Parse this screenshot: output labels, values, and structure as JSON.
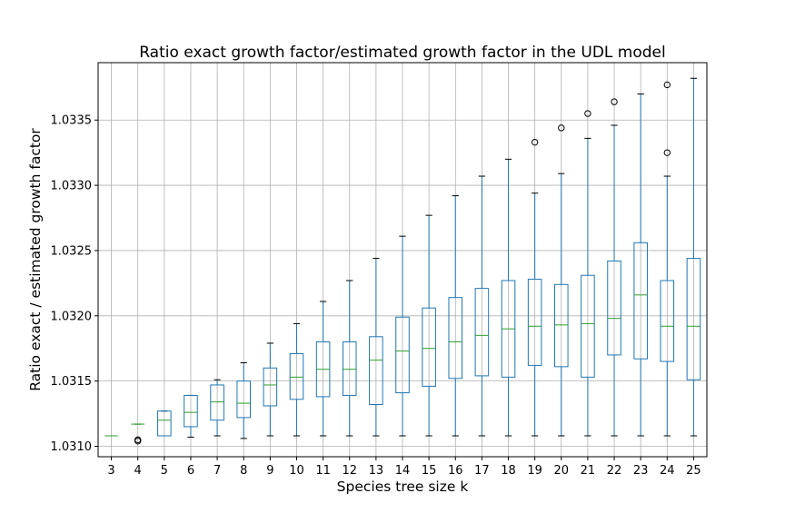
{
  "chart_data": {
    "type": "boxplot",
    "title": "Ratio exact growth factor/estimated growth factor  in the UDL model",
    "xlabel": "Species tree size k",
    "ylabel": "Ratio exact / estimated growth factor",
    "categories": [
      "3",
      "4",
      "5",
      "6",
      "7",
      "8",
      "9",
      "10",
      "11",
      "12",
      "13",
      "14",
      "15",
      "16",
      "17",
      "18",
      "19",
      "20",
      "21",
      "22",
      "23",
      "24",
      "25"
    ],
    "ylim": [
      1.03092,
      1.03394
    ],
    "yticks": [
      "1.0310",
      "1.0315",
      "1.0320",
      "1.0325",
      "1.0330",
      "1.0335"
    ],
    "ytick_values": [
      1.031,
      1.0315,
      1.032,
      1.0325,
      1.033,
      1.0335
    ],
    "grid": true,
    "boxes": [
      {
        "k": "3",
        "whislo": 1.03108,
        "q1": 1.03108,
        "med": 1.03108,
        "q3": 1.03108,
        "whishi": 1.03108,
        "fliers": []
      },
      {
        "k": "4",
        "whislo": 1.03117,
        "q1": 1.03117,
        "med": 1.03117,
        "q3": 1.03117,
        "whishi": 1.03117,
        "fliers": [
          1.03105,
          1.03104
        ]
      },
      {
        "k": "5",
        "whislo": 1.03108,
        "q1": 1.03108,
        "med": 1.0312,
        "q3": 1.03127,
        "whishi": 1.03127,
        "fliers": []
      },
      {
        "k": "6",
        "whislo": 1.03107,
        "q1": 1.03115,
        "med": 1.03126,
        "q3": 1.03139,
        "whishi": 1.03139,
        "fliers": []
      },
      {
        "k": "7",
        "whislo": 1.03108,
        "q1": 1.0312,
        "med": 1.03134,
        "q3": 1.03147,
        "whishi": 1.03151,
        "fliers": []
      },
      {
        "k": "8",
        "whislo": 1.03106,
        "q1": 1.03122,
        "med": 1.03133,
        "q3": 1.0315,
        "whishi": 1.03164,
        "fliers": []
      },
      {
        "k": "9",
        "whislo": 1.03108,
        "q1": 1.03131,
        "med": 1.03147,
        "q3": 1.0316,
        "whishi": 1.03179,
        "fliers": []
      },
      {
        "k": "10",
        "whislo": 1.03108,
        "q1": 1.03136,
        "med": 1.03153,
        "q3": 1.03171,
        "whishi": 1.03194,
        "fliers": []
      },
      {
        "k": "11",
        "whislo": 1.03108,
        "q1": 1.03138,
        "med": 1.03159,
        "q3": 1.0318,
        "whishi": 1.03211,
        "fliers": []
      },
      {
        "k": "12",
        "whislo": 1.03108,
        "q1": 1.03139,
        "med": 1.03159,
        "q3": 1.0318,
        "whishi": 1.03227,
        "fliers": []
      },
      {
        "k": "13",
        "whislo": 1.03108,
        "q1": 1.03132,
        "med": 1.03166,
        "q3": 1.03184,
        "whishi": 1.03244,
        "fliers": []
      },
      {
        "k": "14",
        "whislo": 1.03108,
        "q1": 1.03141,
        "med": 1.03173,
        "q3": 1.03199,
        "whishi": 1.03261,
        "fliers": []
      },
      {
        "k": "15",
        "whislo": 1.03108,
        "q1": 1.03146,
        "med": 1.03175,
        "q3": 1.03206,
        "whishi": 1.03277,
        "fliers": []
      },
      {
        "k": "16",
        "whislo": 1.03108,
        "q1": 1.03152,
        "med": 1.0318,
        "q3": 1.03214,
        "whishi": 1.03292,
        "fliers": []
      },
      {
        "k": "17",
        "whislo": 1.03108,
        "q1": 1.03154,
        "med": 1.03185,
        "q3": 1.03221,
        "whishi": 1.03307,
        "fliers": []
      },
      {
        "k": "18",
        "whislo": 1.03108,
        "q1": 1.03153,
        "med": 1.0319,
        "q3": 1.03227,
        "whishi": 1.0332,
        "fliers": []
      },
      {
        "k": "19",
        "whislo": 1.03108,
        "q1": 1.03162,
        "med": 1.03192,
        "q3": 1.03228,
        "whishi": 1.03294,
        "fliers": [
          1.03333
        ]
      },
      {
        "k": "20",
        "whislo": 1.03108,
        "q1": 1.03161,
        "med": 1.03193,
        "q3": 1.03224,
        "whishi": 1.03309,
        "fliers": [
          1.03344
        ]
      },
      {
        "k": "21",
        "whislo": 1.03108,
        "q1": 1.03153,
        "med": 1.03194,
        "q3": 1.03231,
        "whishi": 1.03336,
        "fliers": [
          1.03355
        ]
      },
      {
        "k": "22",
        "whislo": 1.03108,
        "q1": 1.0317,
        "med": 1.03198,
        "q3": 1.03242,
        "whishi": 1.03346,
        "fliers": [
          1.03364
        ]
      },
      {
        "k": "23",
        "whislo": 1.03108,
        "q1": 1.03167,
        "med": 1.03216,
        "q3": 1.03256,
        "whishi": 1.0337,
        "fliers": []
      },
      {
        "k": "24",
        "whislo": 1.03108,
        "q1": 1.03165,
        "med": 1.03192,
        "q3": 1.03227,
        "whishi": 1.03307,
        "fliers": [
          1.03325,
          1.03377
        ]
      },
      {
        "k": "25",
        "whislo": 1.03108,
        "q1": 1.03151,
        "med": 1.03192,
        "q3": 1.03244,
        "whishi": 1.03382,
        "fliers": []
      }
    ]
  }
}
